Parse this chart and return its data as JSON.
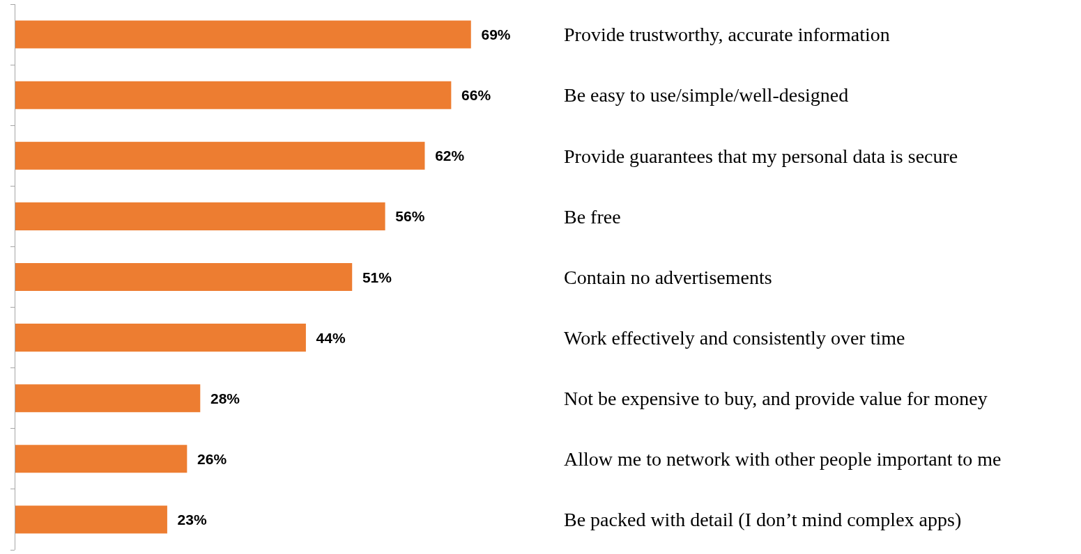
{
  "chart_data": {
    "type": "bar",
    "orientation": "horizontal",
    "categories": [
      "Provide trustworthy, accurate information",
      "Be easy to use/simple/well-designed",
      "Provide guarantees that my personal data is secure",
      "Be free",
      "Contain no advertisements",
      "Work effectively and consistently over time",
      "Not be expensive to buy, and provide value for money",
      "Allow me to network with other people important to me",
      "Be packed with detail (I don’t mind complex apps)"
    ],
    "values": [
      69,
      66,
      62,
      56,
      51,
      44,
      28,
      26,
      23
    ],
    "value_labels": [
      "69%",
      "66%",
      "62%",
      "56%",
      "51%",
      "44%",
      "28%",
      "26%",
      "23%"
    ],
    "color": "#ed7d31"
  }
}
